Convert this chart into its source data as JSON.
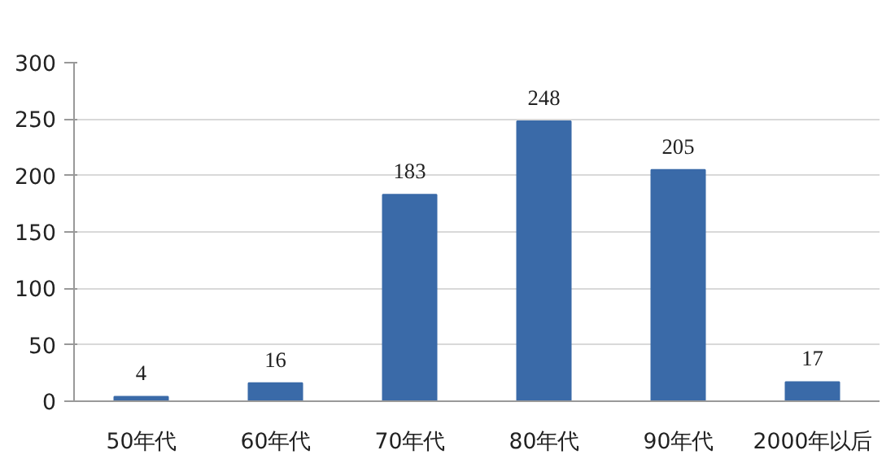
{
  "chart_data": {
    "type": "bar",
    "categories": [
      "50年代",
      "60年代",
      "70年代",
      "80年代",
      "90年代",
      "2000年以后"
    ],
    "values": [
      4,
      16,
      183,
      248,
      205,
      17
    ],
    "color": "#3a6aa8",
    "ylim": [
      0,
      300
    ],
    "yticks": [
      0,
      50,
      100,
      150,
      200,
      250,
      300
    ],
    "grid": "y",
    "data_labels": true
  }
}
